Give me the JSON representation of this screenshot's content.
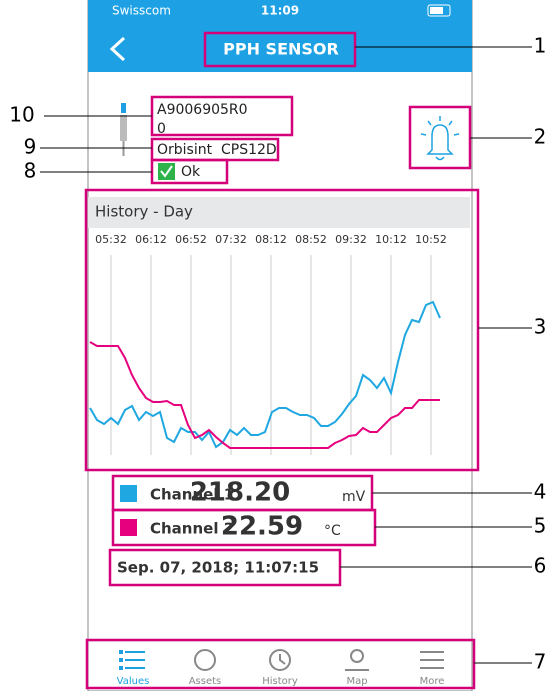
{
  "status_bar": {
    "carrier": "Swisscom",
    "time": "11:09"
  },
  "header": {
    "title": "PPH SENSOR"
  },
  "device": {
    "serial": "A9006905R0",
    "line2": "0",
    "model": "Orbisint  CPS12D",
    "status": "Ok"
  },
  "history": {
    "title": "History - Day",
    "chart_data": {
      "type": "line",
      "x": [
        311,
        318,
        325,
        332,
        339,
        346,
        353,
        360,
        367,
        374,
        381,
        388,
        395,
        402,
        409,
        416,
        423,
        430,
        437,
        444,
        451,
        458,
        465,
        472,
        479,
        486,
        493,
        500,
        507,
        514,
        521,
        528,
        535,
        542,
        549,
        556,
        563,
        570,
        577,
        584,
        591,
        598,
        605,
        612,
        619,
        626,
        633,
        640,
        647,
        654,
        661
      ],
      "xlim": [
        311,
        661
      ],
      "xticks": [
        {
          "value": 332,
          "label": "05:32"
        },
        {
          "value": 372,
          "label": "06:12"
        },
        {
          "value": 412,
          "label": "06:52"
        },
        {
          "value": 452,
          "label": "07:32"
        },
        {
          "value": 492,
          "label": "08:12"
        },
        {
          "value": 532,
          "label": "08:52"
        },
        {
          "value": 572,
          "label": "09:32"
        },
        {
          "value": 612,
          "label": "10:12"
        },
        {
          "value": 652,
          "label": "10:52"
        }
      ],
      "ylim": [
        0,
        100
      ],
      "grid": true,
      "series": [
        {
          "name": "Channel 1",
          "color": "#1ea7e1",
          "values": [
            23.5,
            17.5,
            15.5,
            18.5,
            15.5,
            22.5,
            24.5,
            17.5,
            21.5,
            19.5,
            21.5,
            8.5,
            6.5,
            13.5,
            11.5,
            11.5,
            7.5,
            11.5,
            4,
            6.5,
            12.5,
            10,
            13.5,
            10,
            10,
            11.5,
            21.5,
            23.5,
            23.5,
            21.5,
            20,
            20,
            18.5,
            14.5,
            14.5,
            16.5,
            20.5,
            25.5,
            29.5,
            40,
            37.5,
            33.5,
            38.5,
            31,
            46.5,
            60,
            67.5,
            66.5,
            75,
            76.5,
            68.5
          ]
        },
        {
          "name": "Channel 2",
          "color": "#e6007e",
          "values": [
            56.5,
            54.5,
            54.5,
            54.5,
            54.5,
            48.5,
            40,
            33.5,
            28.5,
            26.5,
            26.5,
            27,
            25,
            25,
            15,
            8.5,
            10,
            12.5,
            9,
            6,
            3.5,
            3.5,
            3.5,
            3.5,
            3.5,
            3.5,
            3.5,
            3.5,
            3.5,
            3.5,
            3.5,
            3.5,
            3.5,
            3.5,
            3.5,
            6,
            7.5,
            9.5,
            10,
            13.5,
            11.5,
            11.5,
            15,
            18.5,
            20,
            23.5,
            23.5,
            27.5,
            27.5,
            27.5,
            27.5
          ]
        }
      ]
    }
  },
  "channels": [
    {
      "name": "Channel 1",
      "value": "218.20",
      "unit": "mV"
    },
    {
      "name": "Channel 2",
      "value": "22.59",
      "unit": "°C"
    }
  ],
  "timestamp": "Sep. 07, 2018; 11:07:15",
  "tabs": [
    "Values",
    "Assets",
    "History",
    "Map",
    "More"
  ],
  "callouts": [
    "1",
    "2",
    "3",
    "4",
    "5",
    "6",
    "7",
    "8",
    "9",
    "10"
  ]
}
